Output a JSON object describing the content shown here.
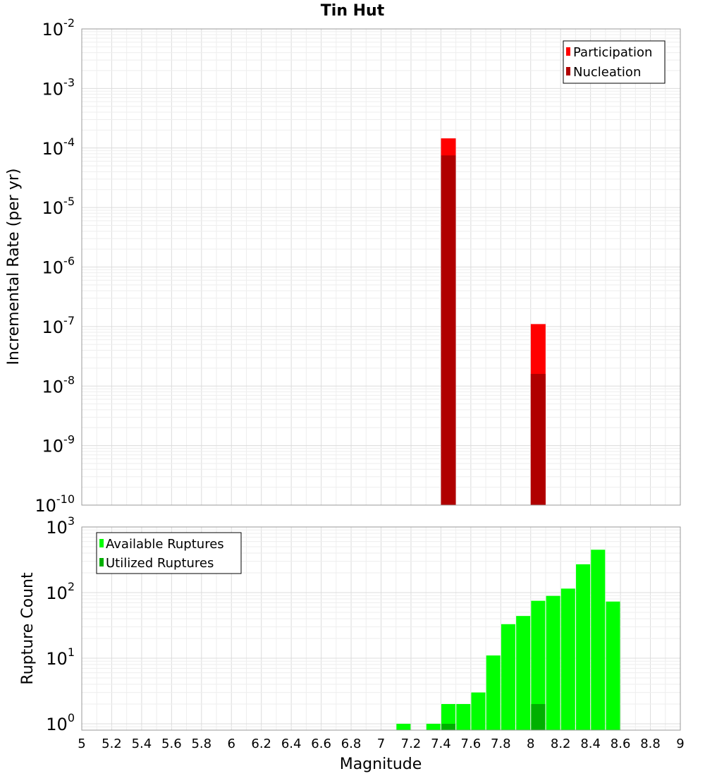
{
  "chart_data": [
    {
      "type": "bar",
      "title": "Tin Hut",
      "xlabel": "",
      "ylabel": "Incremental Rate (per yr)",
      "yscale": "log",
      "xlim": [
        5,
        9
      ],
      "ylim": [
        1e-10,
        0.01
      ],
      "grid": true,
      "legend_position": "top-right",
      "y_tick_labels": [
        {
          "base": "10",
          "exp": "-10"
        },
        {
          "base": "10",
          "exp": "-9"
        },
        {
          "base": "10",
          "exp": "-8"
        },
        {
          "base": "10",
          "exp": "-7"
        },
        {
          "base": "10",
          "exp": "-6"
        },
        {
          "base": "10",
          "exp": "-5"
        },
        {
          "base": "10",
          "exp": "-4"
        },
        {
          "base": "10",
          "exp": "-3"
        },
        {
          "base": "10",
          "exp": "-2"
        }
      ],
      "series": [
        {
          "name": "Participation",
          "color": "#ff0000",
          "x": [
            7.45,
            8.05
          ],
          "values": [
            0.000145,
            1.1e-07
          ]
        },
        {
          "name": "Nucleation",
          "color": "#b00000",
          "x": [
            7.45,
            8.05
          ],
          "values": [
            7.5e-05,
            1.6e-08
          ]
        }
      ]
    },
    {
      "type": "bar",
      "title": "",
      "xlabel": "Magnitude",
      "ylabel": "Rupture Count",
      "yscale": "log",
      "xlim": [
        5,
        9
      ],
      "ylim": [
        0.8,
        1000
      ],
      "grid": true,
      "legend_position": "top-left",
      "y_tick_labels": [
        {
          "base": "10",
          "exp": "0"
        },
        {
          "base": "10",
          "exp": "1"
        },
        {
          "base": "10",
          "exp": "2"
        },
        {
          "base": "10",
          "exp": "3"
        }
      ],
      "x_tick_labels": [
        "5",
        "5.2",
        "5.4",
        "5.6",
        "5.8",
        "6",
        "6.2",
        "6.4",
        "6.6",
        "6.8",
        "7",
        "7.2",
        "7.4",
        "7.6",
        "7.8",
        "8",
        "8.2",
        "8.4",
        "8.6",
        "8.8",
        "9"
      ],
      "series": [
        {
          "name": "Available Ruptures",
          "color": "#00ff00",
          "x": [
            7.15,
            7.35,
            7.45,
            7.55,
            7.65,
            7.75,
            7.85,
            7.95,
            8.05,
            8.15,
            8.25,
            8.35,
            8.45,
            8.55
          ],
          "values": [
            1,
            1,
            2,
            2,
            3,
            11,
            33,
            44,
            75,
            89,
            115,
            270,
            450,
            73
          ]
        },
        {
          "name": "Utilized Ruptures",
          "color": "#00b000",
          "x": [
            7.45,
            8.05
          ],
          "values": [
            1,
            2
          ]
        }
      ]
    }
  ]
}
